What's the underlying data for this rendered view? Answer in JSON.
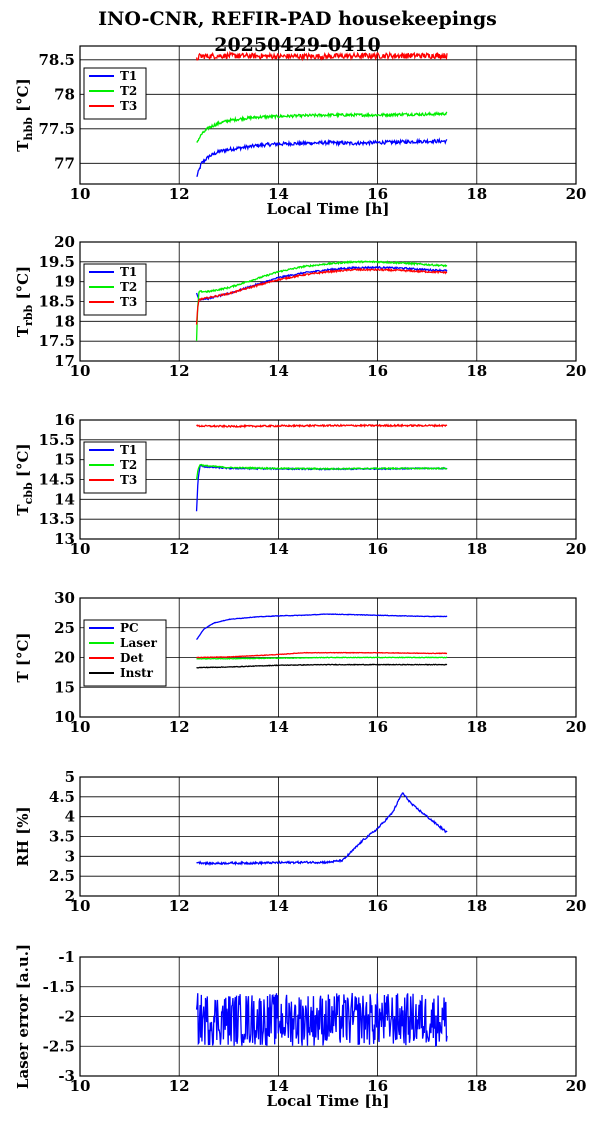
{
  "title": {
    "line1": "INO-CNR, REFIR-PAD housekeepings",
    "line2": "20250429-0410"
  },
  "chart_data": [
    {
      "type": "line",
      "ylabel": "Thbb [°C]",
      "ylabel_main": "T",
      "ylabel_sub": "hbb",
      "ylabel_unit": " [°C]",
      "xlabel": "Local Time [h]",
      "xlim": [
        10,
        20
      ],
      "xticks": [
        10,
        12,
        14,
        16,
        18,
        20
      ],
      "ylim": [
        76.7,
        78.7
      ],
      "yticks": [
        77,
        77.5,
        78,
        78.5
      ],
      "ytick_labels": [
        "77",
        "77.5",
        "78",
        "78.5"
      ],
      "grid": true,
      "legend": "top-left",
      "series": [
        {
          "name": "T1",
          "color": "#0000ff",
          "x": [
            12.35,
            12.45,
            12.6,
            12.8,
            13.0,
            13.3,
            13.6,
            14.0,
            14.5,
            15,
            15.5,
            16,
            16.5,
            17,
            17.4
          ],
          "y": [
            76.8,
            77.0,
            77.1,
            77.17,
            77.2,
            77.23,
            77.26,
            77.28,
            77.29,
            77.3,
            77.29,
            77.3,
            77.31,
            77.32,
            77.32
          ],
          "noise": 0.025
        },
        {
          "name": "T2",
          "color": "#00ee00",
          "x": [
            12.35,
            12.45,
            12.6,
            12.8,
            13.0,
            13.3,
            13.6,
            14.0,
            14.5,
            15,
            15.5,
            16,
            16.5,
            17,
            17.4
          ],
          "y": [
            77.3,
            77.42,
            77.52,
            77.58,
            77.62,
            77.65,
            77.67,
            77.68,
            77.69,
            77.7,
            77.7,
            77.7,
            77.71,
            77.71,
            77.72
          ],
          "noise": 0.02
        },
        {
          "name": "T3",
          "color": "#ff0000",
          "x": [
            12.35,
            12.4,
            13,
            14,
            15,
            16,
            17,
            17.4
          ],
          "y": [
            78.5,
            78.55,
            78.56,
            78.55,
            78.55,
            78.56,
            78.56,
            78.56
          ],
          "noise": 0.04
        }
      ]
    },
    {
      "type": "line",
      "ylabel": "Trbb [°C]",
      "ylabel_main": "T",
      "ylabel_sub": "rbb",
      "ylabel_unit": " [°C]",
      "xlabel": "",
      "xlim": [
        10,
        20
      ],
      "xticks": [
        10,
        12,
        14,
        16,
        18,
        20
      ],
      "ylim": [
        17,
        20
      ],
      "yticks": [
        17,
        17.5,
        18,
        18.5,
        19,
        19.5,
        20
      ],
      "ytick_labels": [
        "17",
        "17.5",
        "18",
        "18.5",
        "19",
        "19.5",
        "20"
      ],
      "grid": true,
      "legend": "top-left",
      "series": [
        {
          "name": "T1",
          "color": "#0000ff",
          "x": [
            12.35,
            12.4,
            12.6,
            13.0,
            13.5,
            14.0,
            14.5,
            15.0,
            15.5,
            16.0,
            16.5,
            17.0,
            17.4
          ],
          "y": [
            18.7,
            18.55,
            18.58,
            18.7,
            18.9,
            19.1,
            19.22,
            19.3,
            19.35,
            19.36,
            19.34,
            19.3,
            19.28
          ],
          "noise": 0.02
        },
        {
          "name": "T2",
          "color": "#00ee00",
          "x": [
            12.35,
            12.37,
            12.4,
            12.6,
            13.0,
            13.5,
            14.0,
            14.5,
            15.0,
            15.5,
            16.0,
            16.5,
            17.0,
            17.4
          ],
          "y": [
            17.5,
            18.3,
            18.75,
            18.75,
            18.85,
            19.05,
            19.25,
            19.38,
            19.45,
            19.5,
            19.5,
            19.47,
            19.43,
            19.4
          ],
          "noise": 0.02
        },
        {
          "name": "T3",
          "color": "#ff0000",
          "x": [
            12.35,
            12.37,
            12.4,
            12.6,
            13.0,
            13.5,
            14.0,
            14.5,
            15.0,
            15.5,
            16.0,
            16.5,
            17.0,
            17.4
          ],
          "y": [
            17.9,
            18.3,
            18.55,
            18.6,
            18.7,
            18.88,
            19.05,
            19.17,
            19.25,
            19.3,
            19.3,
            19.28,
            19.25,
            19.23
          ],
          "noise": 0.02
        }
      ]
    },
    {
      "type": "line",
      "ylabel": "Tcbb [°C]",
      "ylabel_main": "T",
      "ylabel_sub": "cbb",
      "ylabel_unit": " [°C]",
      "xlabel": "",
      "xlim": [
        10,
        20
      ],
      "xticks": [
        10,
        12,
        14,
        16,
        18,
        20
      ],
      "ylim": [
        13,
        16
      ],
      "yticks": [
        13,
        13.5,
        14,
        14.5,
        15,
        15.5,
        16
      ],
      "ytick_labels": [
        "13",
        "13.5",
        "14",
        "14.5",
        "15",
        "15.5",
        "16"
      ],
      "grid": true,
      "legend": "top-left",
      "series": [
        {
          "name": "T1",
          "color": "#0000ff",
          "x": [
            12.35,
            12.38,
            12.42,
            12.5,
            13,
            14,
            15,
            16,
            17,
            17.4
          ],
          "y": [
            13.7,
            14.5,
            14.85,
            14.82,
            14.78,
            14.77,
            14.76,
            14.77,
            14.78,
            14.78
          ],
          "noise": 0.015
        },
        {
          "name": "T2",
          "color": "#00ee00",
          "x": [
            12.35,
            12.38,
            12.42,
            12.5,
            13,
            14,
            15,
            16,
            17,
            17.4
          ],
          "y": [
            14.5,
            14.75,
            14.88,
            14.85,
            14.8,
            14.78,
            14.77,
            14.78,
            14.78,
            14.78
          ],
          "noise": 0.015
        },
        {
          "name": "T3",
          "color": "#ff0000",
          "x": [
            12.35,
            13,
            14,
            15,
            16,
            17,
            17.4
          ],
          "y": [
            15.85,
            15.84,
            15.85,
            15.86,
            15.86,
            15.86,
            15.86
          ],
          "noise": 0.02
        }
      ]
    },
    {
      "type": "line",
      "ylabel": "T [°C]",
      "ylabel_main": "T [°C]",
      "ylabel_sub": "",
      "ylabel_unit": "",
      "xlabel": "",
      "xlim": [
        10,
        20
      ],
      "xticks": [
        10,
        12,
        14,
        16,
        18,
        20
      ],
      "ylim": [
        10,
        30
      ],
      "yticks": [
        10,
        15,
        20,
        25,
        30
      ],
      "ytick_labels": [
        "10",
        "15",
        "20",
        "25",
        "30"
      ],
      "grid": true,
      "legend": "top-left",
      "series": [
        {
          "name": "PC",
          "color": "#0000ff",
          "x": [
            12.35,
            12.5,
            12.7,
            13.0,
            13.5,
            14.0,
            14.5,
            15.0,
            15.5,
            16.0,
            16.5,
            17.0,
            17.4
          ],
          "y": [
            23.0,
            24.8,
            25.8,
            26.4,
            26.8,
            27.0,
            27.1,
            27.3,
            27.2,
            27.1,
            27.0,
            26.9,
            26.9
          ],
          "noise": 0.04
        },
        {
          "name": "Laser",
          "color": "#00ee00",
          "x": [
            12.35,
            13,
            14,
            15,
            16,
            17,
            17.4
          ],
          "y": [
            19.8,
            19.8,
            19.9,
            20.0,
            20.0,
            20.0,
            20.0
          ],
          "noise": 0.05
        },
        {
          "name": "Det",
          "color": "#ff0000",
          "x": [
            12.35,
            13,
            14,
            14.5,
            15,
            16,
            17,
            17.4
          ],
          "y": [
            20.0,
            20.1,
            20.5,
            20.8,
            20.8,
            20.8,
            20.7,
            20.7
          ],
          "noise": 0.04
        },
        {
          "name": "Instr",
          "color": "#000000",
          "x": [
            12.35,
            13,
            14,
            15,
            16,
            17,
            17.4
          ],
          "y": [
            18.3,
            18.4,
            18.7,
            18.8,
            18.8,
            18.8,
            18.8
          ],
          "noise": 0.05
        }
      ]
    },
    {
      "type": "line",
      "ylabel": "RH [%]",
      "ylabel_main": "RH [%]",
      "ylabel_sub": "",
      "ylabel_unit": "",
      "xlabel": "",
      "xlim": [
        10,
        20
      ],
      "xticks": [
        10,
        12,
        14,
        16,
        18,
        20
      ],
      "ylim": [
        2,
        5
      ],
      "yticks": [
        2,
        2.5,
        3,
        3.5,
        4,
        4.5,
        5
      ],
      "ytick_labels": [
        "2",
        "2.5",
        "3",
        "3.5",
        "4",
        "4.5",
        "5"
      ],
      "grid": true,
      "legend": "none",
      "series": [
        {
          "name": "",
          "color": "#0000ff",
          "x": [
            12.35,
            12.6,
            13,
            13.5,
            14,
            14.5,
            15,
            15.3,
            15.5,
            15.7,
            16.0,
            16.3,
            16.5,
            16.7,
            17.0,
            17.4
          ],
          "y": [
            2.85,
            2.82,
            2.83,
            2.83,
            2.84,
            2.85,
            2.85,
            2.9,
            3.15,
            3.4,
            3.7,
            4.1,
            4.6,
            4.3,
            4.0,
            3.6
          ],
          "noise": 0.025
        }
      ]
    },
    {
      "type": "line",
      "ylabel": "Laser error [a.u.]",
      "ylabel_main": "Laser error [a.u.]",
      "ylabel_sub": "",
      "ylabel_unit": "",
      "xlabel": "Local Time [h]",
      "xlim": [
        10,
        20
      ],
      "xticks": [
        10,
        12,
        14,
        16,
        18,
        20
      ],
      "ylim": [
        -3,
        -1
      ],
      "yticks": [
        -3,
        -2.5,
        -2,
        -1.5,
        -1
      ],
      "ytick_labels": [
        "-3",
        "-2.5",
        "-2",
        "-1.5",
        "-1"
      ],
      "grid": true,
      "legend": "none",
      "series": [
        {
          "name": "",
          "color": "#0000ff",
          "x": [
            12.35,
            17.4
          ],
          "y": [
            -2.05,
            -2.05
          ],
          "noise": 0.45
        }
      ]
    }
  ]
}
